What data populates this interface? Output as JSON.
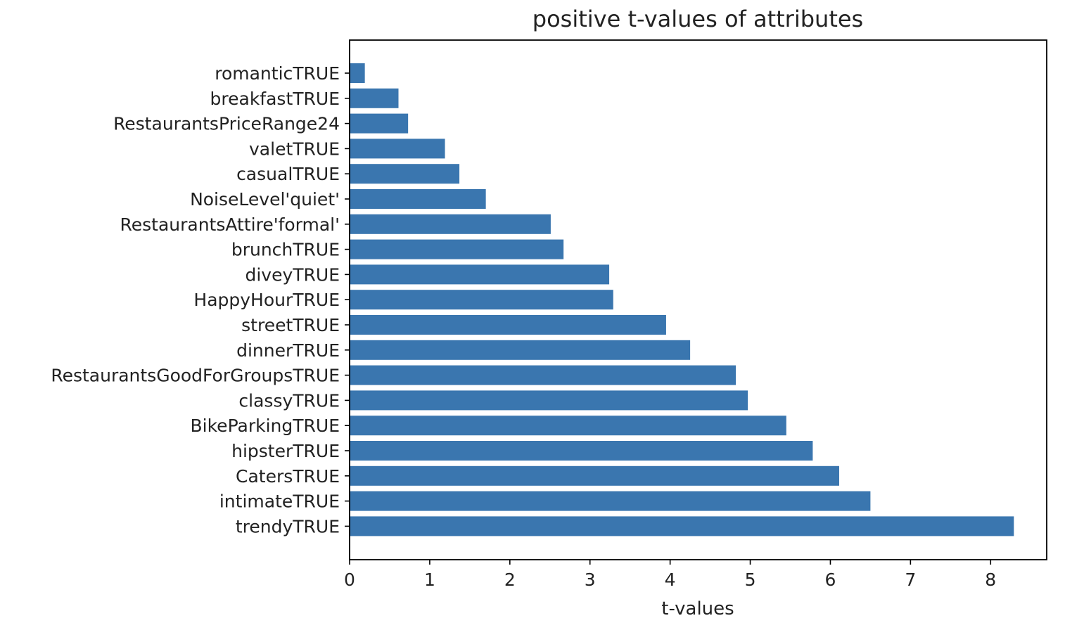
{
  "chart_data": {
    "type": "bar",
    "orientation": "horizontal",
    "title": "positive t-values of attributes",
    "xlabel": "t-values",
    "ylabel": "",
    "xlim": [
      0,
      8.7
    ],
    "xticks": [
      0,
      1,
      2,
      3,
      4,
      5,
      6,
      7,
      8
    ],
    "grid": false,
    "bar_color": "#3a76af",
    "categories": [
      "romanticTRUE",
      "breakfastTRUE",
      "RestaurantsPriceRange24",
      "valetTRUE",
      "casualTRUE",
      "NoiseLevel'quiet'",
      "RestaurantsAttire'formal'",
      "brunchTRUE",
      "diveyTRUE",
      "HappyHourTRUE",
      "streetTRUE",
      "dinnerTRUE",
      "RestaurantsGoodForGroupsTRUE",
      "classyTRUE",
      "BikeParkingTRUE",
      "hipsterTRUE",
      "CatersTRUE",
      "intimateTRUE",
      "trendyTRUE"
    ],
    "values": [
      0.19,
      0.61,
      0.73,
      1.19,
      1.37,
      1.7,
      2.51,
      2.67,
      3.24,
      3.29,
      3.95,
      4.25,
      4.82,
      4.97,
      5.45,
      5.78,
      6.11,
      6.5,
      8.29
    ]
  }
}
